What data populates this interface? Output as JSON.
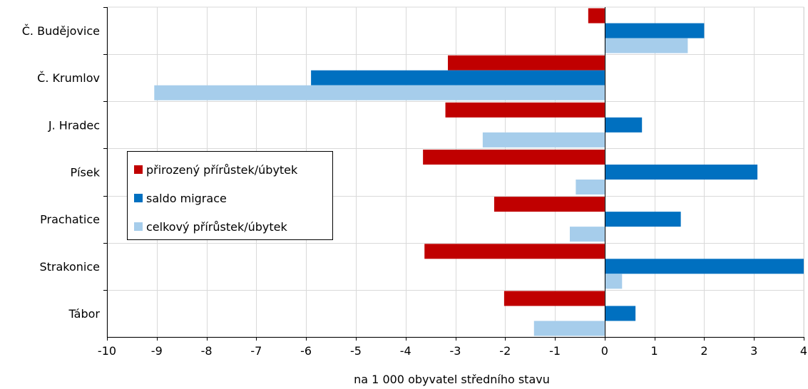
{
  "chart_data": {
    "type": "bar",
    "orientation": "horizontal",
    "title": "",
    "xlabel": "na 1 000 obyvatel středního stavu",
    "ylabel": "",
    "xlim": [
      -10,
      4
    ],
    "x_ticks": [
      -10,
      -9,
      -8,
      -7,
      -6,
      -5,
      -4,
      -3,
      -2,
      -1,
      0,
      1,
      2,
      3,
      4
    ],
    "grid": true,
    "legend_position": "left-middle",
    "categories": [
      "Č. Budějovice",
      "Č. Krumlov",
      "J. Hradec",
      "Písek",
      "Prachatice",
      "Strakonice",
      "Tábor"
    ],
    "series": [
      {
        "name": "přirozený přírůstek/úbytek",
        "color": "#C00000",
        "values": [
          -0.33,
          -3.15,
          -3.2,
          -3.65,
          -2.22,
          -3.62,
          -2.02
        ]
      },
      {
        "name": "saldo migrace",
        "color": "#0070C0",
        "values": [
          2.0,
          -5.9,
          0.75,
          3.07,
          1.53,
          4.0,
          0.62
        ]
      },
      {
        "name": "celkový přírůstek/úbytek",
        "color": "#A6CDEB",
        "values": [
          1.67,
          -9.05,
          -2.45,
          -0.58,
          -0.7,
          0.35,
          -1.42
        ]
      }
    ]
  }
}
